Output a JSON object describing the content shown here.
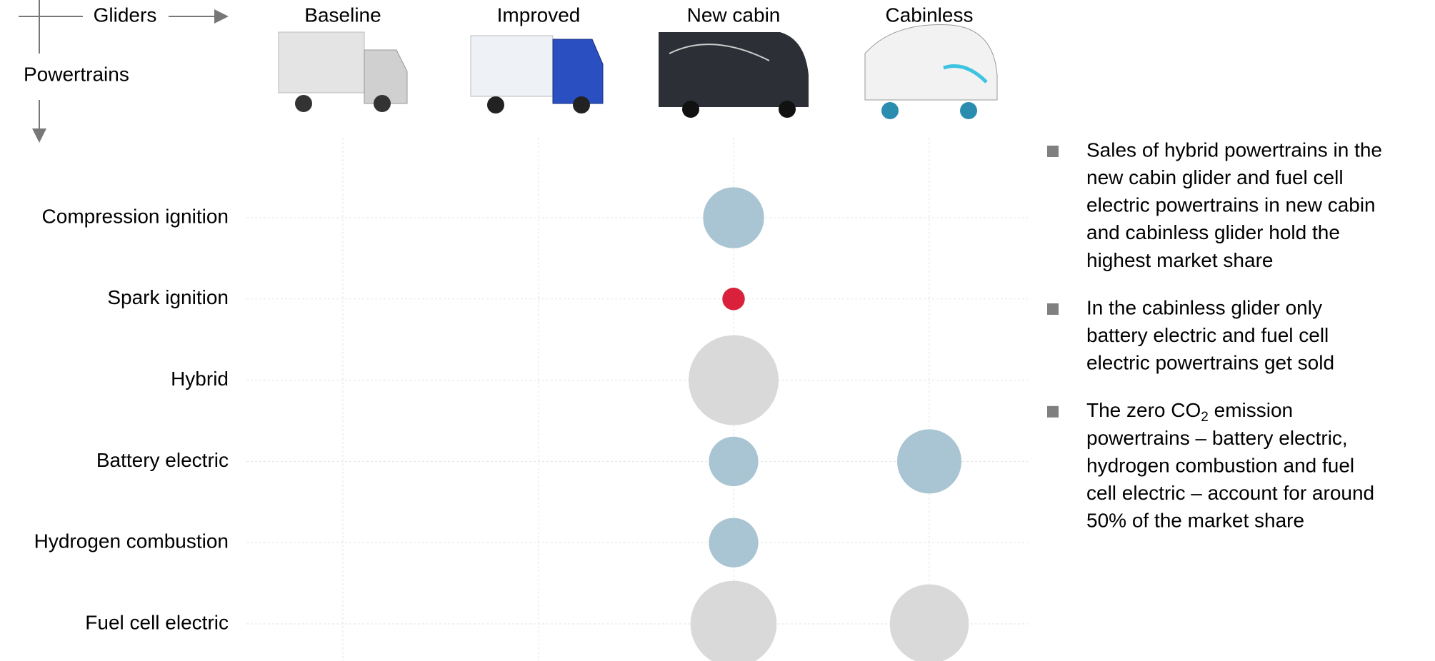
{
  "chart_data": {
    "type": "bubble",
    "x_axis_label": "Gliders",
    "y_axis_label": "Powertrains",
    "categories": [
      "Compression ignition",
      "Spark ignition",
      "Hybrid",
      "Battery electric",
      "Hydrogen combustion",
      "Fuel cell electric"
    ],
    "series": [
      {
        "name": "Baseline",
        "values": [
          null,
          null,
          null,
          null,
          null,
          null
        ],
        "colors": [
          null,
          null,
          null,
          null,
          null,
          null
        ]
      },
      {
        "name": "Improved",
        "values": [
          null,
          null,
          null,
          null,
          null,
          null
        ],
        "colors": [
          null,
          null,
          null,
          null,
          null,
          null
        ]
      },
      {
        "name": "New cabin",
        "values": [
          44,
          6,
          96,
          29,
          29,
          88
        ],
        "colors": [
          "#a9c4d2",
          "#d9213b",
          "#d9d9d9",
          "#a9c4d2",
          "#a9c4d2",
          "#d9d9d9"
        ]
      },
      {
        "name": "Cabinless",
        "values": [
          null,
          null,
          null,
          49,
          null,
          74
        ],
        "colors": [
          null,
          null,
          null,
          "#a9c4d2",
          null,
          "#d9d9d9"
        ]
      }
    ],
    "grid": true,
    "notes": [
      {
        "lines": [
          "Sales of hybrid powertrains in the",
          "new cabin glider and fuel cell",
          "electric powertrains in new cabin",
          "and cabinless glider hold the",
          "highest market share"
        ]
      },
      {
        "lines": [
          "In the cabinless glider only",
          "battery electric and fuel cell",
          "electric powertrains get sold"
        ]
      },
      {
        "lines": [
          [
            "The zero CO",
            "2",
            " emission"
          ],
          "powertrains – battery electric,",
          "hydrogen combustion and fuel",
          "cell electric – account for around",
          "50% of the market share"
        ]
      }
    ]
  }
}
